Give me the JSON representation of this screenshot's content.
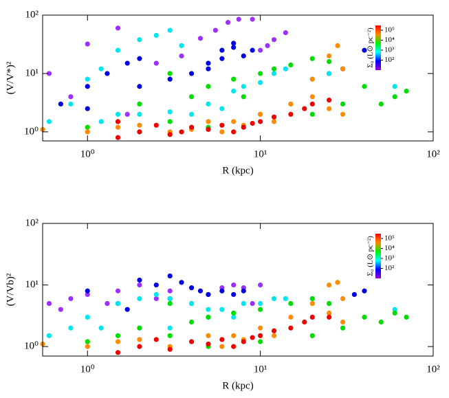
{
  "chart_data": [
    {
      "type": "scatter",
      "xlabel": "R (kpc)",
      "ylabel": "(V/V*)²",
      "log_x": true,
      "log_y": true,
      "xlim": [
        0.55,
        100
      ],
      "ylim": [
        0.7,
        100
      ],
      "xticks": [
        {
          "value": 1,
          "label": "10⁰"
        },
        {
          "value": 10,
          "label": "10¹"
        },
        {
          "value": 100,
          "label": "10²"
        }
      ],
      "yticks": [
        {
          "value": 1,
          "label": "10⁰"
        },
        {
          "value": 10,
          "label": "10¹"
        },
        {
          "value": 100,
          "label": "10²"
        }
      ],
      "colorbar": {
        "label": "Σ₀ (L⊙ pc⁻²)",
        "clim": [
          10,
          300000
        ],
        "colors": [
          "#ff0000",
          "#ff8c00",
          "#00ee00",
          "#00ffff",
          "#0000ff",
          "#9400d3"
        ],
        "ticks": [
          {
            "value": 100000,
            "label": "10⁵"
          },
          {
            "value": 10000,
            "label": "10⁴"
          },
          {
            "value": 1000,
            "label": "10³"
          },
          {
            "value": 100,
            "label": "10²"
          }
        ]
      },
      "series": [
        {
          "color": "#9b30ff",
          "x": [
            0.6,
            1.0,
            1.5,
            2.5,
            3.5,
            4.5,
            5.5,
            6.5,
            7.5,
            9,
            10,
            11,
            12,
            14,
            1.7,
            0.8
          ],
          "values": [
            10,
            32,
            60,
            15,
            20,
            40,
            55,
            75,
            85,
            85,
            25,
            30,
            38,
            50,
            2,
            4
          ]
        },
        {
          "color": "#0000e0",
          "x": [
            0.7,
            1,
            1.3,
            1.7,
            2,
            3,
            4,
            5,
            6,
            7,
            8,
            9,
            5,
            6,
            7,
            2,
            1,
            40,
            30,
            25
          ],
          "values": [
            3,
            6,
            10,
            15,
            18,
            8,
            10,
            12,
            25,
            33,
            20,
            25,
            15,
            18,
            28,
            6,
            2.5,
            25,
            12,
            10
          ]
        },
        {
          "color": "#00e5ee",
          "x": [
            0.6,
            0.8,
            1,
            1.2,
            1.5,
            2,
            2.5,
            3,
            3.5,
            1.5,
            2,
            3,
            5,
            7,
            10,
            12,
            14,
            20,
            25,
            60,
            4,
            8,
            6,
            1.2
          ],
          "values": [
            1.5,
            3,
            8,
            12,
            25,
            38,
            45,
            55,
            30,
            2,
            2,
            2.2,
            3,
            5,
            7,
            10,
            12,
            8,
            10,
            6,
            2,
            6,
            2.5,
            1.5
          ]
        },
        {
          "color": "#00dd00",
          "x": [
            1,
            1.5,
            2,
            3,
            4,
            5,
            7,
            10,
            12,
            15,
            20,
            25,
            40,
            60,
            70,
            30,
            20,
            10,
            3,
            2,
            5,
            50,
            15,
            8
          ],
          "values": [
            1.2,
            1.5,
            3,
            1.5,
            4,
            6,
            8,
            10,
            12,
            14,
            18,
            16,
            6,
            4,
            5,
            3,
            2,
            2,
            10,
            1,
            1.2,
            3,
            3,
            4
          ]
        },
        {
          "color": "#ff8c00",
          "x": [
            0.55,
            1,
            1.5,
            2,
            3,
            4,
            5,
            7,
            10,
            15,
            20,
            25,
            28,
            30,
            20,
            25,
            30,
            8,
            12,
            6
          ],
          "values": [
            1.1,
            1,
            1.2,
            1.3,
            1,
            1.1,
            1.5,
            1.5,
            2,
            3,
            8,
            20,
            30,
            12,
            4,
            2.5,
            2,
            1.3,
            1.5,
            1
          ]
        },
        {
          "color": "#ee0000",
          "x": [
            1.5,
            2,
            2.5,
            3,
            3.5,
            4,
            5,
            6,
            8,
            10,
            12,
            15,
            18,
            20,
            25,
            7,
            9,
            1.5
          ],
          "values": [
            0.8,
            1,
            1.3,
            0.9,
            1,
            1.2,
            1.1,
            1.3,
            1.2,
            1.5,
            1.8,
            2,
            2.5,
            3,
            3.5,
            1,
            1.4,
            1.5
          ]
        }
      ]
    },
    {
      "type": "scatter",
      "xlabel": "R (kpc)",
      "ylabel": "(V/Vb)²",
      "log_x": true,
      "log_y": true,
      "xlim": [
        0.55,
        100
      ],
      "ylim": [
        0.7,
        100
      ],
      "xticks": [
        {
          "value": 1,
          "label": "10⁰"
        },
        {
          "value": 10,
          "label": "10¹"
        },
        {
          "value": 100,
          "label": "10²"
        }
      ],
      "yticks": [
        {
          "value": 1,
          "label": "10⁰"
        },
        {
          "value": 10,
          "label": "10¹"
        },
        {
          "value": 100,
          "label": "10²"
        }
      ],
      "colorbar": {
        "label": "Σ₀ (L⊙ pc⁻²)",
        "clim": [
          10,
          300000
        ],
        "colors": [
          "#ff0000",
          "#ff8c00",
          "#00ee00",
          "#00ffff",
          "#0000ff",
          "#9400d3"
        ],
        "ticks": [
          {
            "value": 100000,
            "label": "10⁵"
          },
          {
            "value": 10000,
            "label": "10⁴"
          },
          {
            "value": 1000,
            "label": "10³"
          },
          {
            "value": 100,
            "label": "10²"
          }
        ]
      },
      "series": [
        {
          "color": "#9b30ff",
          "x": [
            0.6,
            0.8,
            1,
            1.5,
            2,
            3,
            4,
            5,
            6,
            7,
            8,
            10,
            9,
            0.7,
            1.3,
            2.5
          ],
          "values": [
            5,
            6,
            7,
            8,
            10,
            8,
            5,
            7,
            9,
            10,
            9,
            10,
            5,
            4,
            5,
            6
          ]
        },
        {
          "color": "#0000e0",
          "x": [
            1,
            1.5,
            2,
            2.5,
            3,
            3.5,
            4,
            4.5,
            5,
            6,
            7,
            8,
            40,
            35,
            1.7,
            3
          ],
          "values": [
            8,
            5,
            12,
            10,
            14,
            11,
            9,
            8,
            7,
            8,
            7,
            8,
            8,
            7,
            4,
            6
          ]
        },
        {
          "color": "#00e5ee",
          "x": [
            0.6,
            0.8,
            1,
            1.5,
            2,
            2.5,
            3,
            4,
            5,
            6,
            8,
            10,
            12,
            14,
            20,
            25,
            60,
            1.2,
            2,
            3,
            5,
            7
          ],
          "values": [
            1.5,
            2,
            3,
            5,
            6,
            7,
            6,
            5,
            4,
            4,
            5,
            5,
            6,
            6,
            6,
            5,
            4,
            2,
            2,
            2,
            3,
            3
          ]
        },
        {
          "color": "#00dd00",
          "x": [
            1,
            1.5,
            2,
            3,
            4,
            5,
            7,
            10,
            15,
            20,
            25,
            40,
            60,
            70,
            30,
            20,
            10,
            3,
            5,
            50
          ],
          "values": [
            1.2,
            1.5,
            2,
            1.5,
            2.5,
            3,
            3.5,
            4,
            5,
            6,
            5,
            3,
            3.5,
            3,
            2,
            1.5,
            1.2,
            5,
            1,
            2.5
          ]
        },
        {
          "color": "#ff8c00",
          "x": [
            0.55,
            1,
            1.5,
            2,
            3,
            5,
            7,
            10,
            15,
            20,
            25,
            28,
            30,
            25,
            30,
            8,
            12,
            6
          ],
          "values": [
            1.1,
            1,
            1.2,
            1.3,
            1,
            1.5,
            1.5,
            2,
            3,
            5,
            10,
            11,
            6,
            3.5,
            2.5,
            1.3,
            1.5,
            1
          ]
        },
        {
          "color": "#ee0000",
          "x": [
            1.5,
            2,
            2.5,
            3,
            4,
            5,
            6,
            8,
            10,
            12,
            15,
            18,
            20,
            25,
            7,
            9
          ],
          "values": [
            0.8,
            1,
            1.3,
            0.9,
            1.2,
            1.1,
            1.3,
            1.2,
            1.5,
            1.8,
            2,
            2.5,
            3,
            3,
            1,
            1.4
          ]
        }
      ]
    }
  ]
}
